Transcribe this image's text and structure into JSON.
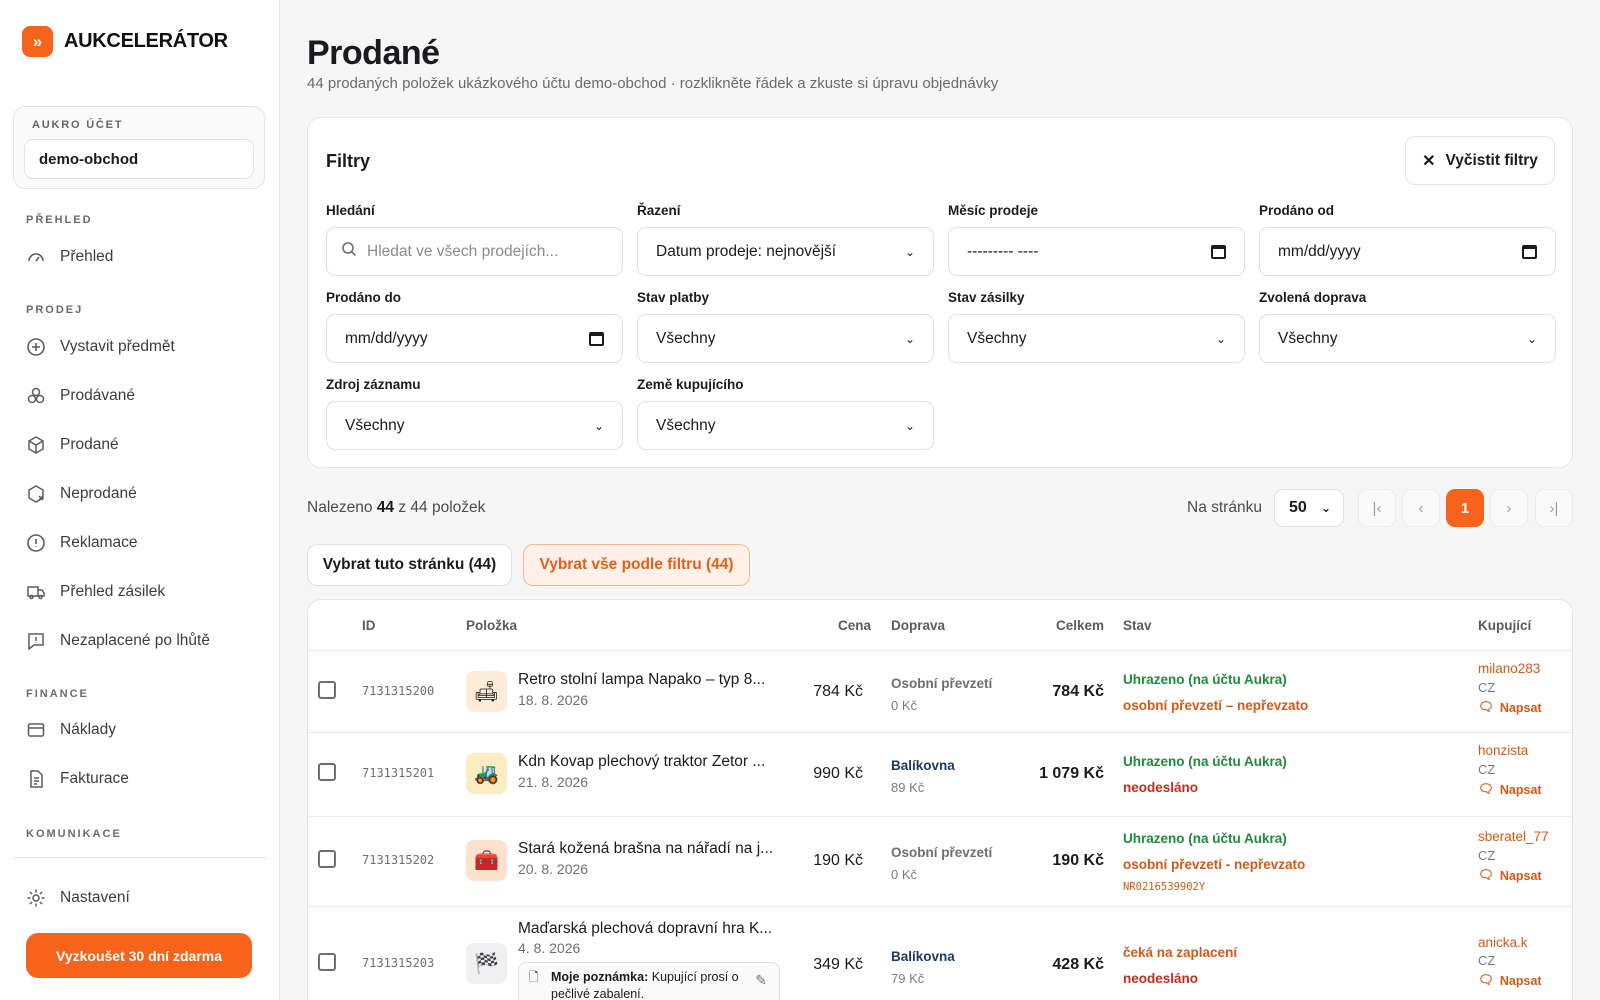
{
  "brand": {
    "name": "AUKCELERÁTOR",
    "logo_glyph": "»"
  },
  "account": {
    "label": "AUKRO ÚČET",
    "value": "demo-obchod"
  },
  "sidebar": {
    "sections": {
      "prehled": "PŘEHLED",
      "prodej": "PRODEJ",
      "finance": "FINANCE",
      "komunikace": "KOMUNIKACE"
    },
    "items": {
      "prehled": "Přehled",
      "vystavit": "Vystavit předmět",
      "prodavane": "Prodávané",
      "prodane": "Prodané",
      "neprodane": "Neprodané",
      "reklamace": "Reklamace",
      "zasilky": "Přehled zásilek",
      "nezaplacene": "Nezaplacené po lhůtě",
      "naklady": "Náklady",
      "fakturace": "Fakturace",
      "nastaveni": "Nastavení"
    },
    "trial_button": "Vyzkoušet 30 dní zdarma"
  },
  "page": {
    "title": "Prodané",
    "subtitle": "44 prodaných položek ukázkového účtu demo-obchod · rozklikněte řádek a zkuste si úpravu objednávky"
  },
  "filters": {
    "title": "Filtry",
    "clear_label": "Vyčistit filtry",
    "search": {
      "label": "Hledání",
      "placeholder": "Hledat ve všech prodejích..."
    },
    "sort": {
      "label": "Řazení",
      "value": "Datum prodeje: nejnovější"
    },
    "month": {
      "label": "Měsíc prodeje",
      "value": "--------- ----"
    },
    "from": {
      "label": "Prodáno od",
      "value": "mm/dd/yyyy"
    },
    "to": {
      "label": "Prodáno do",
      "value": "mm/dd/yyyy"
    },
    "payment": {
      "label": "Stav platby",
      "value": "Všechny"
    },
    "shipment": {
      "label": "Stav zásilky",
      "value": "Všechny"
    },
    "transport": {
      "label": "Zvolená doprava",
      "value": "Všechny"
    },
    "source": {
      "label": "Zdroj záznamu",
      "value": "Všechny"
    },
    "country": {
      "label": "Země kupujícího",
      "value": "Všechny"
    }
  },
  "results": {
    "prefix": "Nalezeno",
    "count": "44",
    "suffix": "z 44 položek"
  },
  "pagination": {
    "per_page_label": "Na stránku",
    "per_page": "50",
    "first": "|‹",
    "prev": "‹",
    "current": "1",
    "next": "›",
    "last": "›|"
  },
  "selection": {
    "page_button": "Vybrat tuto stránku (44)",
    "all_button": "Vybrat vše podle filtru (44)"
  },
  "table": {
    "headers": {
      "id": "ID",
      "item": "Položka",
      "price": "Cena",
      "shipping": "Doprava",
      "total": "Celkem",
      "status": "Stav",
      "buyer": "Kupující"
    },
    "rows": [
      {
        "id": "7131315200",
        "icon": "lamp-icon",
        "name": "Retro stolní lampa Napako – typ 8...",
        "date": "18. 8. 2026",
        "price": "784 Kč",
        "shipping": "Osobní převzetí",
        "ship_cost": "0 Kč",
        "total": "784 Kč",
        "status1": "Uhrazeno (na účtu Aukra)",
        "status2": "osobní převzetí – nepřevzato",
        "buyer": "milano283",
        "country": "CZ",
        "write": "Napsat"
      },
      {
        "id": "7131315201",
        "icon": "tractor-icon",
        "name": "Kdn Kovap plechový traktor Zetor ...",
        "date": "21. 8. 2026",
        "price": "990 Kč",
        "shipping": "Balíkovna",
        "ship_cost": "89 Kč",
        "total": "1 079 Kč",
        "status1": "Uhrazeno (na účtu Aukra)",
        "status2": "neodesláno",
        "buyer": "honzista",
        "country": "CZ",
        "write": "Napsat"
      },
      {
        "id": "7131315202",
        "icon": "toolbox-icon",
        "name": "Stará kožená brašna na nářadí na j...",
        "date": "20. 8. 2026",
        "price": "190 Kč",
        "shipping": "Osobní převzetí",
        "ship_cost": "0 Kč",
        "total": "190 Kč",
        "status1": "Uhrazeno (na účtu Aukra)",
        "status2": "osobní převzetí - nepřevzato",
        "tracking": "NR0216539902Y",
        "buyer": "sberatel_77",
        "country": "CZ",
        "write": "Napsat"
      },
      {
        "id": "7131315203",
        "icon": "checkered-flag-icon",
        "name": "Maďarská plechová dopravní hra K...",
        "date": "4. 8. 2026",
        "note_label": "Moje poznámka:",
        "note_text": "Kupující prosí o pečlivé zabalení.",
        "price": "349 Kč",
        "shipping": "Balíkovna",
        "ship_cost": "79 Kč",
        "total": "428 Kč",
        "status1": "čeká na zaplacení",
        "status2": "neodesláno",
        "buyer": "anicka.k",
        "country": "CZ",
        "write": "Napsat"
      }
    ]
  },
  "colors": {
    "accent": "#f7631a",
    "paid": "#1f8a3a",
    "warning": "#d25a16",
    "unsent": "#c02f1c"
  }
}
